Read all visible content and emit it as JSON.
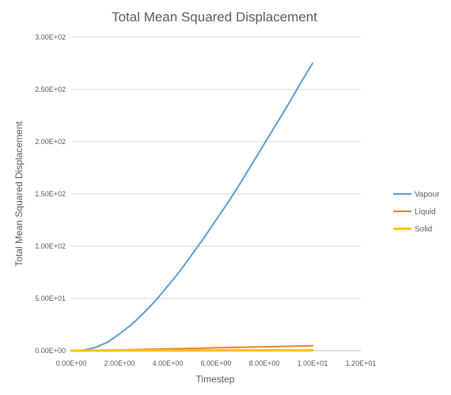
{
  "chart_data": {
    "type": "line",
    "title": "Total Mean Squared Displacement",
    "xlabel": "Timestep",
    "ylabel": "Total Mean Squared Displacement",
    "xlim": [
      0,
      12
    ],
    "ylim": [
      0,
      300
    ],
    "x_ticks": [
      "0.00E+00",
      "2.00E+00",
      "4.00E+00",
      "6.00E+00",
      "8.00E+00",
      "1.00E+01",
      "1.20E+01"
    ],
    "y_ticks": [
      "0.00E+00",
      "5.00E+01",
      "1.00E+02",
      "1.50E+02",
      "2.00E+02",
      "2.50E+02",
      "3.00E+02"
    ],
    "grid": "horizontal",
    "legend_position": "right",
    "series": [
      {
        "name": "Vapour",
        "color": "#5B9BD5",
        "x": [
          0,
          0.5,
          1,
          1.5,
          2,
          2.5,
          3,
          3.5,
          4,
          4.5,
          5,
          5.5,
          6,
          6.5,
          7,
          7.5,
          8,
          8.5,
          9,
          9.5,
          10
        ],
        "y": [
          0,
          0.5,
          3,
          8,
          16,
          25,
          36,
          48,
          62,
          76,
          92,
          108,
          125,
          142,
          160,
          179,
          198,
          217,
          236,
          256,
          275
        ]
      },
      {
        "name": "Liquid",
        "color": "#ED7D31",
        "x": [
          0,
          1,
          2,
          3,
          4,
          5,
          6,
          7,
          8,
          9,
          10
        ],
        "y": [
          0,
          0.3,
          0.7,
          1.2,
          1.7,
          2.2,
          2.7,
          3.2,
          3.7,
          4.2,
          4.8
        ]
      },
      {
        "name": "Solid",
        "color": "#FFC000",
        "x": [
          0,
          1,
          2,
          3,
          4,
          5,
          6,
          7,
          8,
          9,
          10
        ],
        "y": [
          0,
          0.1,
          0.15,
          0.2,
          0.2,
          0.25,
          0.25,
          0.3,
          0.3,
          0.3,
          0.3
        ]
      }
    ]
  }
}
